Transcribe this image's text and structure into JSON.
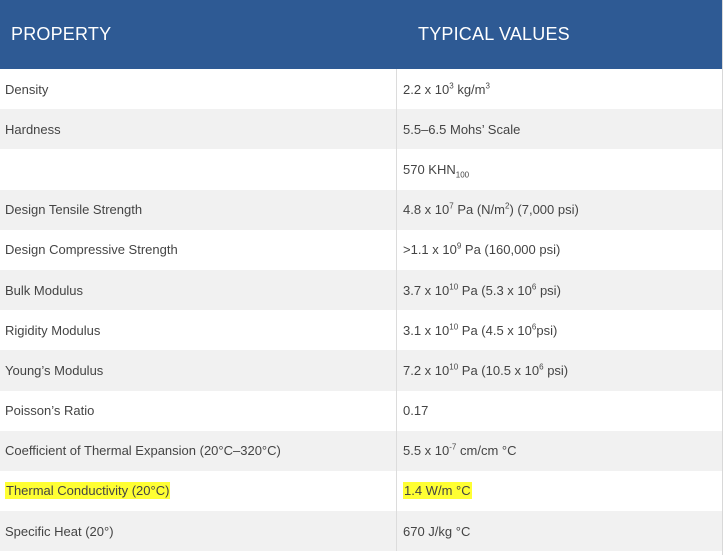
{
  "header": {
    "property": "PROPERTY",
    "values": "TYPICAL VALUES"
  },
  "rows": [
    {
      "property": "Density",
      "value": {
        "pre": "2.2 x 10",
        "sup": "3",
        "post": " kg/m",
        "sup2": "3"
      }
    },
    {
      "property": "Hardness",
      "value": {
        "pre": "5.5–6.5 Mohs’ Scale"
      }
    },
    {
      "property": "",
      "value": {
        "pre": "570 KHN",
        "sub": "100"
      }
    },
    {
      "property": "Design Tensile Strength",
      "value": {
        "pre": "4.8 x 10",
        "sup": "7",
        "post": " Pa (N/m",
        "sup2": "2",
        "post2": ") (7,000 psi)"
      }
    },
    {
      "property": "Design Compressive Strength",
      "value": {
        "pre": ">1.1 x 10",
        "sup": "9",
        "post": " Pa (160,000 psi)"
      }
    },
    {
      "property": "Bulk Modulus",
      "value": {
        "pre": "3.7 x 10",
        "sup": "10",
        "post": " Pa (5.3 x 10",
        "sup2": "6",
        "post2": " psi)"
      }
    },
    {
      "property": "Rigidity Modulus",
      "value": {
        "pre": "3.1 x 10",
        "sup": "10",
        "post": " Pa (4.5 x 10",
        "sup2": "6",
        "post2": "psi)"
      }
    },
    {
      "property": "Young’s Modulus",
      "value": {
        "pre": "7.2 x 10",
        "sup": "10",
        "post": " Pa (10.5 x 10",
        "sup2": "6",
        "post2": " psi)"
      }
    },
    {
      "property": "Poisson’s Ratio",
      "value": {
        "pre": "0.17"
      }
    },
    {
      "property": "Coefficient of Thermal Expansion (20°C–320°C)",
      "value": {
        "pre": "5.5 x 10",
        "sup": "-7",
        "post": " cm/cm °C"
      }
    },
    {
      "property": "Thermal Conductivity (20°C)",
      "value": {
        "pre": "1.4 W/m °C"
      },
      "highlight": true
    },
    {
      "property": "Specific Heat (20°)",
      "value": {
        "pre": "670 J/kg °C"
      }
    }
  ],
  "colors": {
    "header_bg": "#2e5a94",
    "highlight": "#ffff33",
    "alt_row": "#f1f1f1"
  }
}
